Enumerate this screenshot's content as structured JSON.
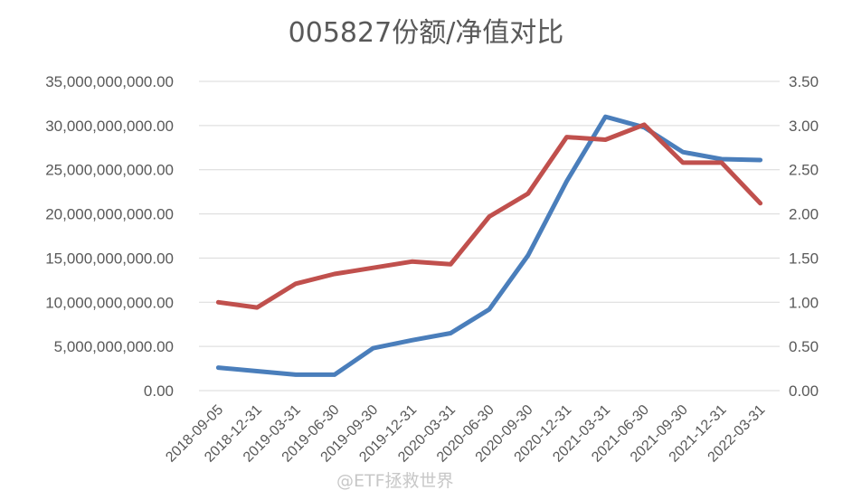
{
  "chart_data": {
    "type": "line",
    "title": "005827份额/净值对比",
    "categories": [
      "2018-09-05",
      "2018-12-31",
      "2019-03-31",
      "2019-06-30",
      "2019-09-30",
      "2019-12-31",
      "2020-03-31",
      "2020-06-30",
      "2020-09-30",
      "2020-12-31",
      "2021-03-31",
      "2021-06-30",
      "2021-09-30",
      "2021-12-31",
      "2022-03-31"
    ],
    "left_axis": {
      "ylim": [
        0,
        35000000000
      ],
      "ticks": [
        "0.00",
        "5,000,000,000.00",
        "10,000,000,000.00",
        "15,000,000,000.00",
        "20,000,000,000.00",
        "25,000,000,000.00",
        "30,000,000,000.00",
        "35,000,000,000.00"
      ]
    },
    "right_axis": {
      "ylim": [
        0,
        3.5
      ],
      "ticks": [
        "0.00",
        "0.50",
        "1.00",
        "1.50",
        "2.00",
        "2.50",
        "3.00",
        "3.50"
      ]
    },
    "series": [
      {
        "axis": "left",
        "color": "#4a7ebb",
        "values": [
          2600000000,
          2200000000,
          1800000000,
          1800000000,
          4800000000,
          5700000000,
          6500000000,
          9200000000,
          15300000000,
          23700000000,
          31000000000,
          29800000000,
          27000000000,
          26200000000,
          26100000000
        ]
      },
      {
        "axis": "right",
        "color": "#c0504d",
        "values": [
          1.0,
          0.94,
          1.21,
          1.32,
          1.39,
          1.46,
          1.43,
          1.97,
          2.23,
          2.87,
          2.84,
          3.01,
          2.58,
          2.58,
          2.12
        ]
      }
    ],
    "grid": true,
    "legend": "none"
  },
  "watermark": "@ETF拯救世界"
}
